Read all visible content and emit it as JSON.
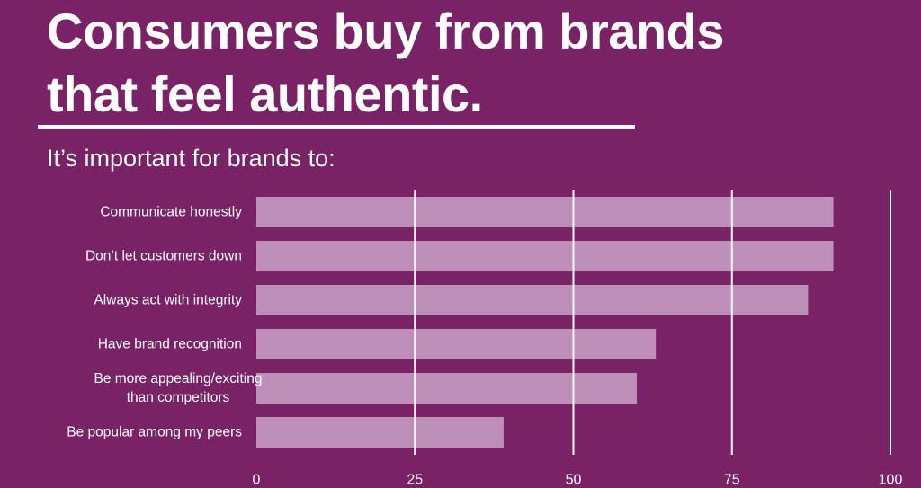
{
  "header": {
    "title_line1": "Consumers buy from brands",
    "title_line2": "that feel authentic.",
    "subtitle": "It’s important for brands to:"
  },
  "colors": {
    "background": "#7a2266",
    "bar": "#be8fb8",
    "gridline": "#ffffff",
    "text": "#ffffff"
  },
  "chart_data": {
    "type": "bar",
    "orientation": "horizontal",
    "title": "",
    "xlabel": "",
    "ylabel": "",
    "categories": [
      [
        "Communicate honestly"
      ],
      [
        "Don’t let customers down"
      ],
      [
        "Always act with integrity"
      ],
      [
        "Have brand recognition"
      ],
      [
        "Be more appealing/exciting",
        "than competitors"
      ],
      [
        "Be popular among my peers"
      ]
    ],
    "values": [
      91,
      91,
      87,
      63,
      60,
      39
    ],
    "xlim": [
      0,
      100
    ],
    "ticks": [
      "0",
      "25",
      "50",
      "75",
      "100"
    ],
    "tick_values": [
      0,
      25,
      50,
      75,
      100
    ],
    "grid": true,
    "legend": "none"
  }
}
